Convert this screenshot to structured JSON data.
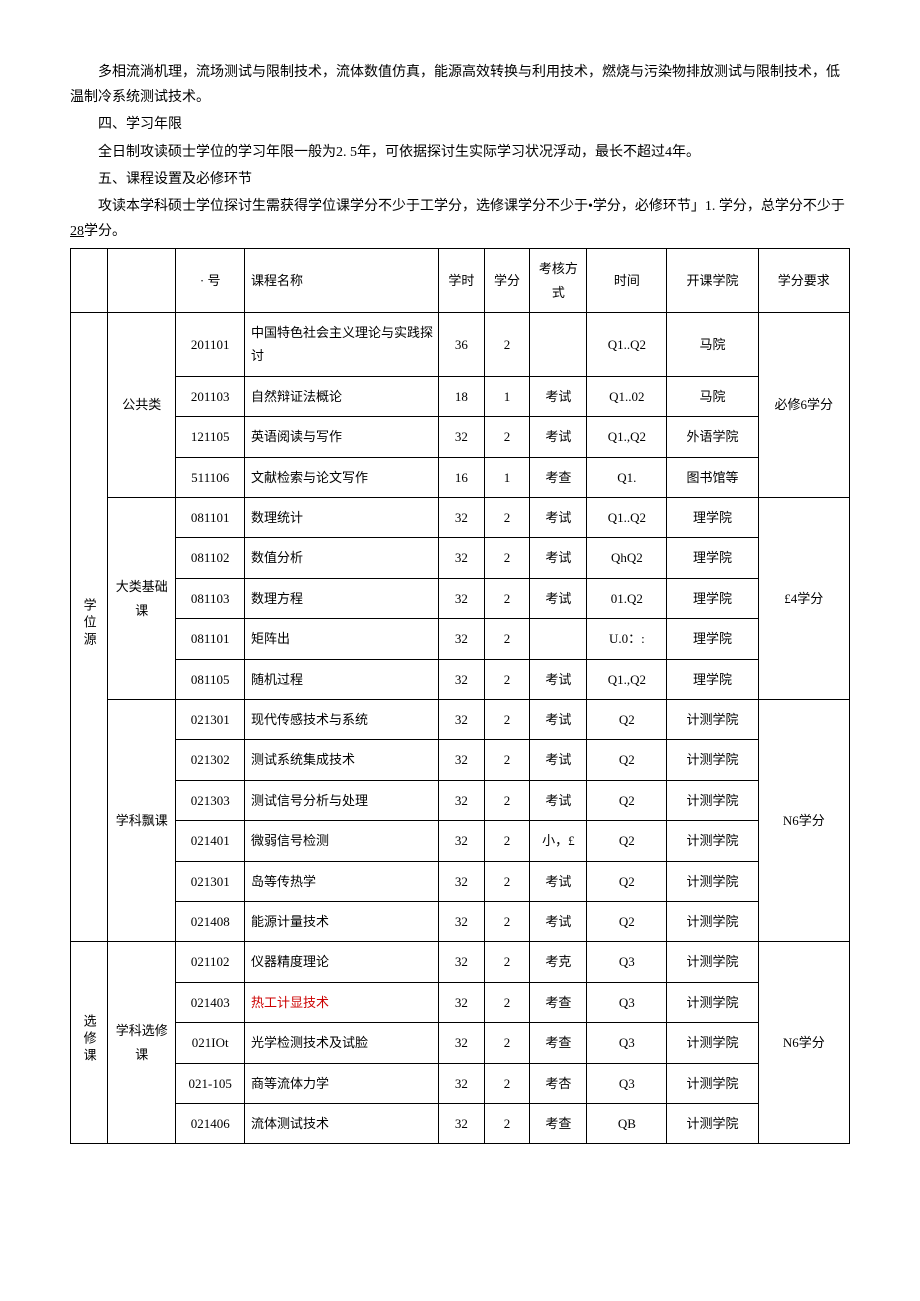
{
  "intro_text": "多相流淌机理，流场测试与限制技术，流体数值仿真，能源高效转换与利用技术，燃烧与污染物排放测试与限制技术，低温制冷系统测试技术。",
  "sections": {
    "four": {
      "heading": "四、学习年限",
      "body": "全日制攻读硕士学位的学习年限一般为2. 5年，可依据探讨生实际学习状况浮动，最长不超过4年。"
    },
    "five": {
      "heading": "五、课程设置及必修环节",
      "body_pre": "攻读本学科硕士学位探讨生需获得学位课学分不少于工学分，选修课学分不少于•学分，必修环节」1. 学分，总学分不少于",
      "body_underline": "28",
      "body_post": "学分。"
    }
  },
  "table": {
    "headers": {
      "course_num": "· 号",
      "course_name": "课程名称",
      "hours": "学时",
      "credits": "学分",
      "assess": "考核方式",
      "time": "时间",
      "college": "开课学院",
      "credit_req": "学分要求"
    },
    "groups": [
      {
        "cat1": "学位源",
        "subgroups": [
          {
            "cat2": "公共类",
            "req": "必修6学分",
            "rows": [
              {
                "num": "201101",
                "name": "中国特色社会主义理论与实践探讨",
                "hrs": "36",
                "cr": "2",
                "as": "",
                "tm": "Q1..Q2",
                "col": "马院"
              },
              {
                "num": "201103",
                "name": "自然辩证法概论",
                "hrs": "18",
                "cr": "1",
                "as": "考试",
                "tm": "Q1..02",
                "col": "马院"
              },
              {
                "num": "121105",
                "name": "英语阅读与写作",
                "hrs": "32",
                "cr": "2",
                "as": "考试",
                "tm": "Q1.,Q2",
                "col": "外语学院"
              },
              {
                "num": "511106",
                "name": "文献检索与论文写作",
                "hrs": "16",
                "cr": "1",
                "as": "考查",
                "tm": "Q1.",
                "col": "图书馆等"
              }
            ]
          },
          {
            "cat2": "大类基础课",
            "req": "£4学分",
            "rows": [
              {
                "num": "081101",
                "name": "数理统计",
                "hrs": "32",
                "cr": "2",
                "as": "考试",
                "tm": "Q1..Q2",
                "col": "理学院"
              },
              {
                "num": "081102",
                "name": "数值分析",
                "hrs": "32",
                "cr": "2",
                "as": "考试",
                "tm": "QhQ2",
                "col": "理学院"
              },
              {
                "num": "081103",
                "name": "数理方程",
                "hrs": "32",
                "cr": "2",
                "as": "考试",
                "tm": "01.Q2",
                "col": "理学院"
              },
              {
                "num": "081101",
                "name": "矩阵出",
                "hrs": "32",
                "cr": "2",
                "as": "",
                "tm": "U.0：:",
                "col": "理学院"
              },
              {
                "num": "081105",
                "name": "随机过程",
                "hrs": "32",
                "cr": "2",
                "as": "考试",
                "tm": "Q1.,Q2",
                "col": "理学院"
              }
            ]
          },
          {
            "cat2": "学科飘课",
            "req": "N6学分",
            "rows": [
              {
                "num": "021301",
                "name": "现代传感技术与系统",
                "hrs": "32",
                "cr": "2",
                "as": "考试",
                "tm": "Q2",
                "col": "计测学院"
              },
              {
                "num": "021302",
                "name": "测试系统集成技术",
                "hrs": "32",
                "cr": "2",
                "as": "考试",
                "tm": "Q2",
                "col": "计测学院"
              },
              {
                "num": "021303",
                "name": "测试信号分析与处理",
                "hrs": "32",
                "cr": "2",
                "as": "考试",
                "tm": "Q2",
                "col": "计测学院"
              },
              {
                "num": "021401",
                "name": "微弱信号检测",
                "hrs": "32",
                "cr": "2",
                "as": "小，£",
                "tm": "Q2",
                "col": "计测学院"
              },
              {
                "num": "021301",
                "name": "岛等传热学",
                "hrs": "32",
                "cr": "2",
                "as": "考试",
                "tm": "Q2",
                "col": "计测学院"
              },
              {
                "num": "021408",
                "name": "能源计量技术",
                "hrs": "32",
                "cr": "2",
                "as": "考试",
                "tm": "Q2",
                "col": "计测学院"
              }
            ]
          }
        ]
      },
      {
        "cat1": "选修课",
        "subgroups": [
          {
            "cat2": "学科选修课",
            "req": "N6学分",
            "rows": [
              {
                "num": "021102",
                "name": "仪器精度理论",
                "hrs": "32",
                "cr": "2",
                "as": "考克",
                "tm": "Q3",
                "col": "计测学院"
              },
              {
                "num": "021403",
                "name": "热工计显技术",
                "hrs": "32",
                "cr": "2",
                "as": "考查",
                "tm": "Q3",
                "col": "计测学院",
                "red": true
              },
              {
                "num": "021IOt",
                "name": "光学检测技术及试脸",
                "hrs": "32",
                "cr": "2",
                "as": "考查",
                "tm": "Q3",
                "col": "计测学院"
              },
              {
                "num": "021-105",
                "name": "商等流体力学",
                "hrs": "32",
                "cr": "2",
                "as": "考杏",
                "tm": "Q3",
                "col": "计测学院"
              },
              {
                "num": "021406",
                "name": "流体测试技术",
                "hrs": "32",
                "cr": "2",
                "as": "考查",
                "tm": "QB",
                "col": "计测学院"
              }
            ]
          }
        ]
      }
    ]
  }
}
